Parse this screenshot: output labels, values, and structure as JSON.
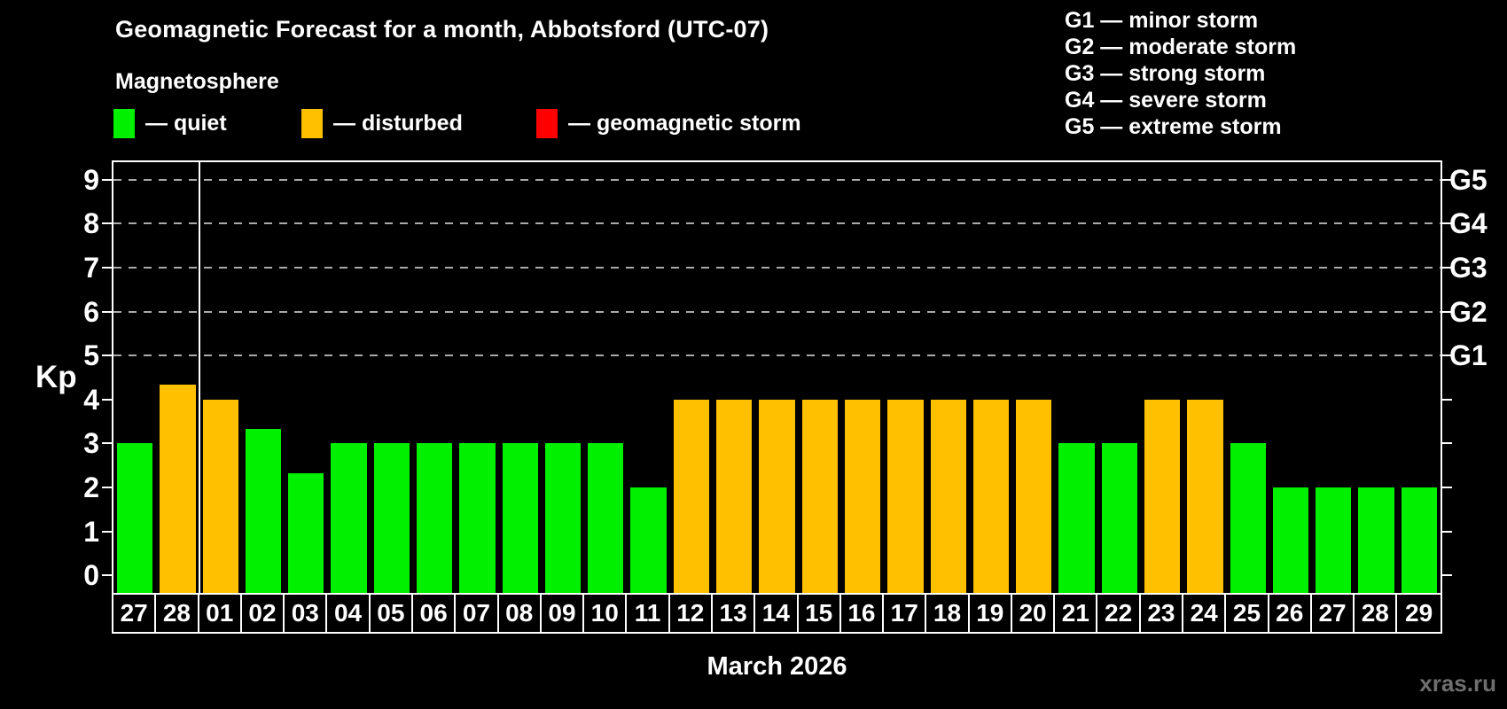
{
  "header": {
    "title": "Geomagnetic Forecast for a month, Abbotsford (UTC-07)",
    "subtitle": "Magnetosphere"
  },
  "legend": {
    "items": [
      {
        "label": "— quiet",
        "state": "quiet",
        "color": "#00F000"
      },
      {
        "label": "— disturbed",
        "state": "disturbed",
        "color": "#FFC000"
      },
      {
        "label": "— geomagnetic storm",
        "state": "storm",
        "color": "#FF0000"
      }
    ]
  },
  "g_legend": {
    "lines": [
      "G1 — minor storm",
      "G2 — moderate storm",
      "G3 — strong storm",
      "G4 — severe storm",
      "G5 — extreme storm"
    ]
  },
  "chart_data": {
    "type": "bar",
    "title": "Geomagnetic Forecast for a month, Abbotsford (UTC-07)",
    "xlabel": "March 2026",
    "ylabel": "Kp",
    "ylim": [
      -0.4,
      9.4
    ],
    "y_ticks": [
      0,
      1,
      2,
      3,
      4,
      5,
      6,
      7,
      8,
      9
    ],
    "grid": "dashed horizontal lines at Kp 5-9",
    "legend_position": "top",
    "g_levels": [
      {
        "kp": 5,
        "label": "G1"
      },
      {
        "kp": 6,
        "label": "G2"
      },
      {
        "kp": 7,
        "label": "G3"
      },
      {
        "kp": 8,
        "label": "G4"
      },
      {
        "kp": 9,
        "label": "G5"
      }
    ],
    "categories": [
      "27",
      "28",
      "01",
      "02",
      "03",
      "04",
      "05",
      "06",
      "07",
      "08",
      "09",
      "10",
      "11",
      "12",
      "13",
      "14",
      "15",
      "16",
      "17",
      "18",
      "19",
      "20",
      "21",
      "22",
      "23",
      "24",
      "25",
      "26",
      "27",
      "28",
      "29"
    ],
    "values": [
      3,
      4.33,
      4,
      3.33,
      2.33,
      3,
      3,
      3,
      3,
      3,
      3,
      3,
      2,
      4,
      4,
      4,
      4,
      4,
      4,
      4,
      4,
      4,
      3,
      3,
      4,
      4,
      3,
      2,
      2,
      2,
      2
    ],
    "states": [
      "quiet",
      "disturbed",
      "disturbed",
      "quiet",
      "quiet",
      "quiet",
      "quiet",
      "quiet",
      "quiet",
      "quiet",
      "quiet",
      "quiet",
      "quiet",
      "disturbed",
      "disturbed",
      "disturbed",
      "disturbed",
      "disturbed",
      "disturbed",
      "disturbed",
      "disturbed",
      "disturbed",
      "quiet",
      "quiet",
      "disturbed",
      "disturbed",
      "quiet",
      "quiet",
      "quiet",
      "quiet",
      "quiet"
    ],
    "colors": {
      "quiet": "#00F000",
      "disturbed": "#FFC000",
      "storm": "#FF0000"
    },
    "month_divider_after_index": 2
  },
  "footer": {
    "watermark": "xras.ru"
  }
}
